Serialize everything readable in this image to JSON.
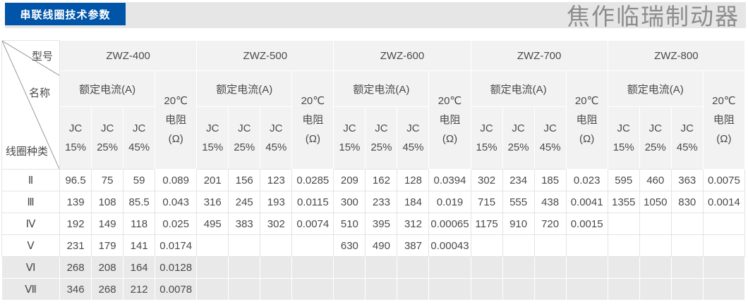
{
  "header": {
    "title_badge": "串联线圈技术参数",
    "watermark": "焦作临瑞制动器"
  },
  "table": {
    "corner": {
      "top": "型号",
      "middle": "名称",
      "bottom": "线圈种类"
    },
    "models": [
      "ZWZ-400",
      "ZWZ-500",
      "ZWZ-600",
      "ZWZ-700",
      "ZWZ-800"
    ],
    "rated_current_label": "额定电流(A)",
    "resistance_label_lines": [
      "20℃",
      "电阻",
      "(Ω)"
    ],
    "duty_cycle_labels": [
      [
        "JC",
        "15%"
      ],
      [
        "JC",
        "25%"
      ],
      [
        "JC",
        "45%"
      ]
    ],
    "rows": [
      {
        "coil_type": "Ⅱ",
        "shaded": false,
        "values": [
          "96.5",
          "75",
          "59",
          "0.089",
          "201",
          "156",
          "123",
          "0.0285",
          "209",
          "162",
          "128",
          "0.0394",
          "302",
          "234",
          "185",
          "0.023",
          "595",
          "460",
          "363",
          "0.0075"
        ]
      },
      {
        "coil_type": "Ⅲ",
        "shaded": false,
        "values": [
          "139",
          "108",
          "85.5",
          "0.043",
          "316",
          "245",
          "193",
          "0.0115",
          "300",
          "233",
          "184",
          "0.019",
          "715",
          "555",
          "438",
          "0.0041",
          "1355",
          "1050",
          "830",
          "0.0014"
        ]
      },
      {
        "coil_type": "Ⅳ",
        "shaded": false,
        "values": [
          "192",
          "149",
          "118",
          "0.025",
          "495",
          "383",
          "302",
          "0.0074",
          "510",
          "395",
          "312",
          "0.00065",
          "1175",
          "910",
          "720",
          "0.0015",
          "",
          "",
          "",
          ""
        ]
      },
      {
        "coil_type": "Ⅴ",
        "shaded": false,
        "values": [
          "231",
          "179",
          "141",
          "0.0174",
          "",
          "",
          "",
          "",
          "630",
          "490",
          "387",
          "0.00043",
          "",
          "",
          "",
          "",
          "",
          "",
          "",
          ""
        ]
      },
      {
        "coil_type": "Ⅵ",
        "shaded": true,
        "values": [
          "268",
          "208",
          "164",
          "0.0128",
          "",
          "",
          "",
          "",
          "",
          "",
          "",
          "",
          "",
          "",
          "",
          "",
          "",
          "",
          "",
          ""
        ]
      },
      {
        "coil_type": "Ⅶ",
        "shaded": true,
        "values": [
          "346",
          "268",
          "212",
          "0.0078",
          "",
          "",
          "",
          "",
          "",
          "",
          "",
          "",
          "",
          "",
          "",
          "",
          "",
          "",
          "",
          ""
        ]
      }
    ]
  }
}
